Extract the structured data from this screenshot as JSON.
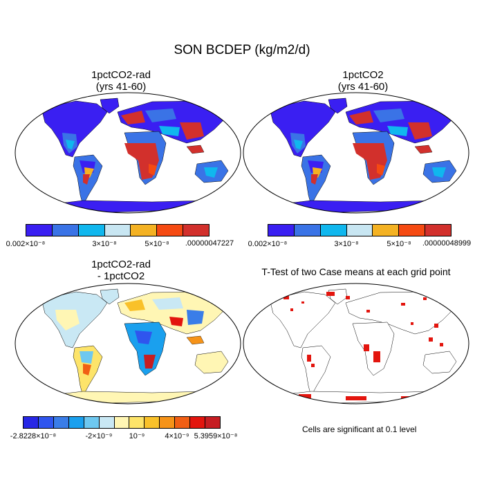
{
  "title": "SON BCDEP (kg/m2/d)",
  "panels": [
    {
      "title_line1": "1pctCO2-rad",
      "title_line2": "(yrs 41-60)"
    },
    {
      "title_line1": "1pctCO2",
      "title_line2": "(yrs 41-60)"
    },
    {
      "title_line1": "1pctCO2-rad",
      "title_line2": "- 1pctCO2"
    },
    {
      "title_line1": "T-Test of two Case means at each grid point",
      "title_line2": ""
    }
  ],
  "colorbar1": {
    "colors": [
      "#3a1ff2",
      "#3a73e6",
      "#10b7ee",
      "#c8e6f2",
      "#f4b223",
      "#f54a12",
      "#d2302c"
    ],
    "labels": [
      "0.002×10⁻⁸",
      "3×10⁻⁸",
      "5×10⁻⁸",
      ".00000047227"
    ]
  },
  "colorbar2": {
    "colors": [
      "#3a1ff2",
      "#3a73e6",
      "#10b7ee",
      "#c8e6f2",
      "#f4b223",
      "#f54a12",
      "#d2302c"
    ],
    "labels": [
      "0.002×10⁻⁸",
      "3×10⁻⁸",
      "5×10⁻⁸",
      ".00000048999"
    ]
  },
  "colorbar3": {
    "colors": [
      "#2727e6",
      "#2f55ee",
      "#3a7de8",
      "#1aa0ee",
      "#6ec8f0",
      "#c9e8f4",
      "#fff6b4",
      "#fde46a",
      "#f9c12a",
      "#f69318",
      "#f15f14",
      "#e3150e",
      "#c61d22"
    ],
    "labels": [
      "-2.8228×10⁻⁸",
      "-2×10⁻⁹",
      "10⁻⁹",
      "4×10⁻⁹",
      "5.3959×10⁻⁸"
    ]
  },
  "significance_note": "Cells are significant at 0.1 level"
}
